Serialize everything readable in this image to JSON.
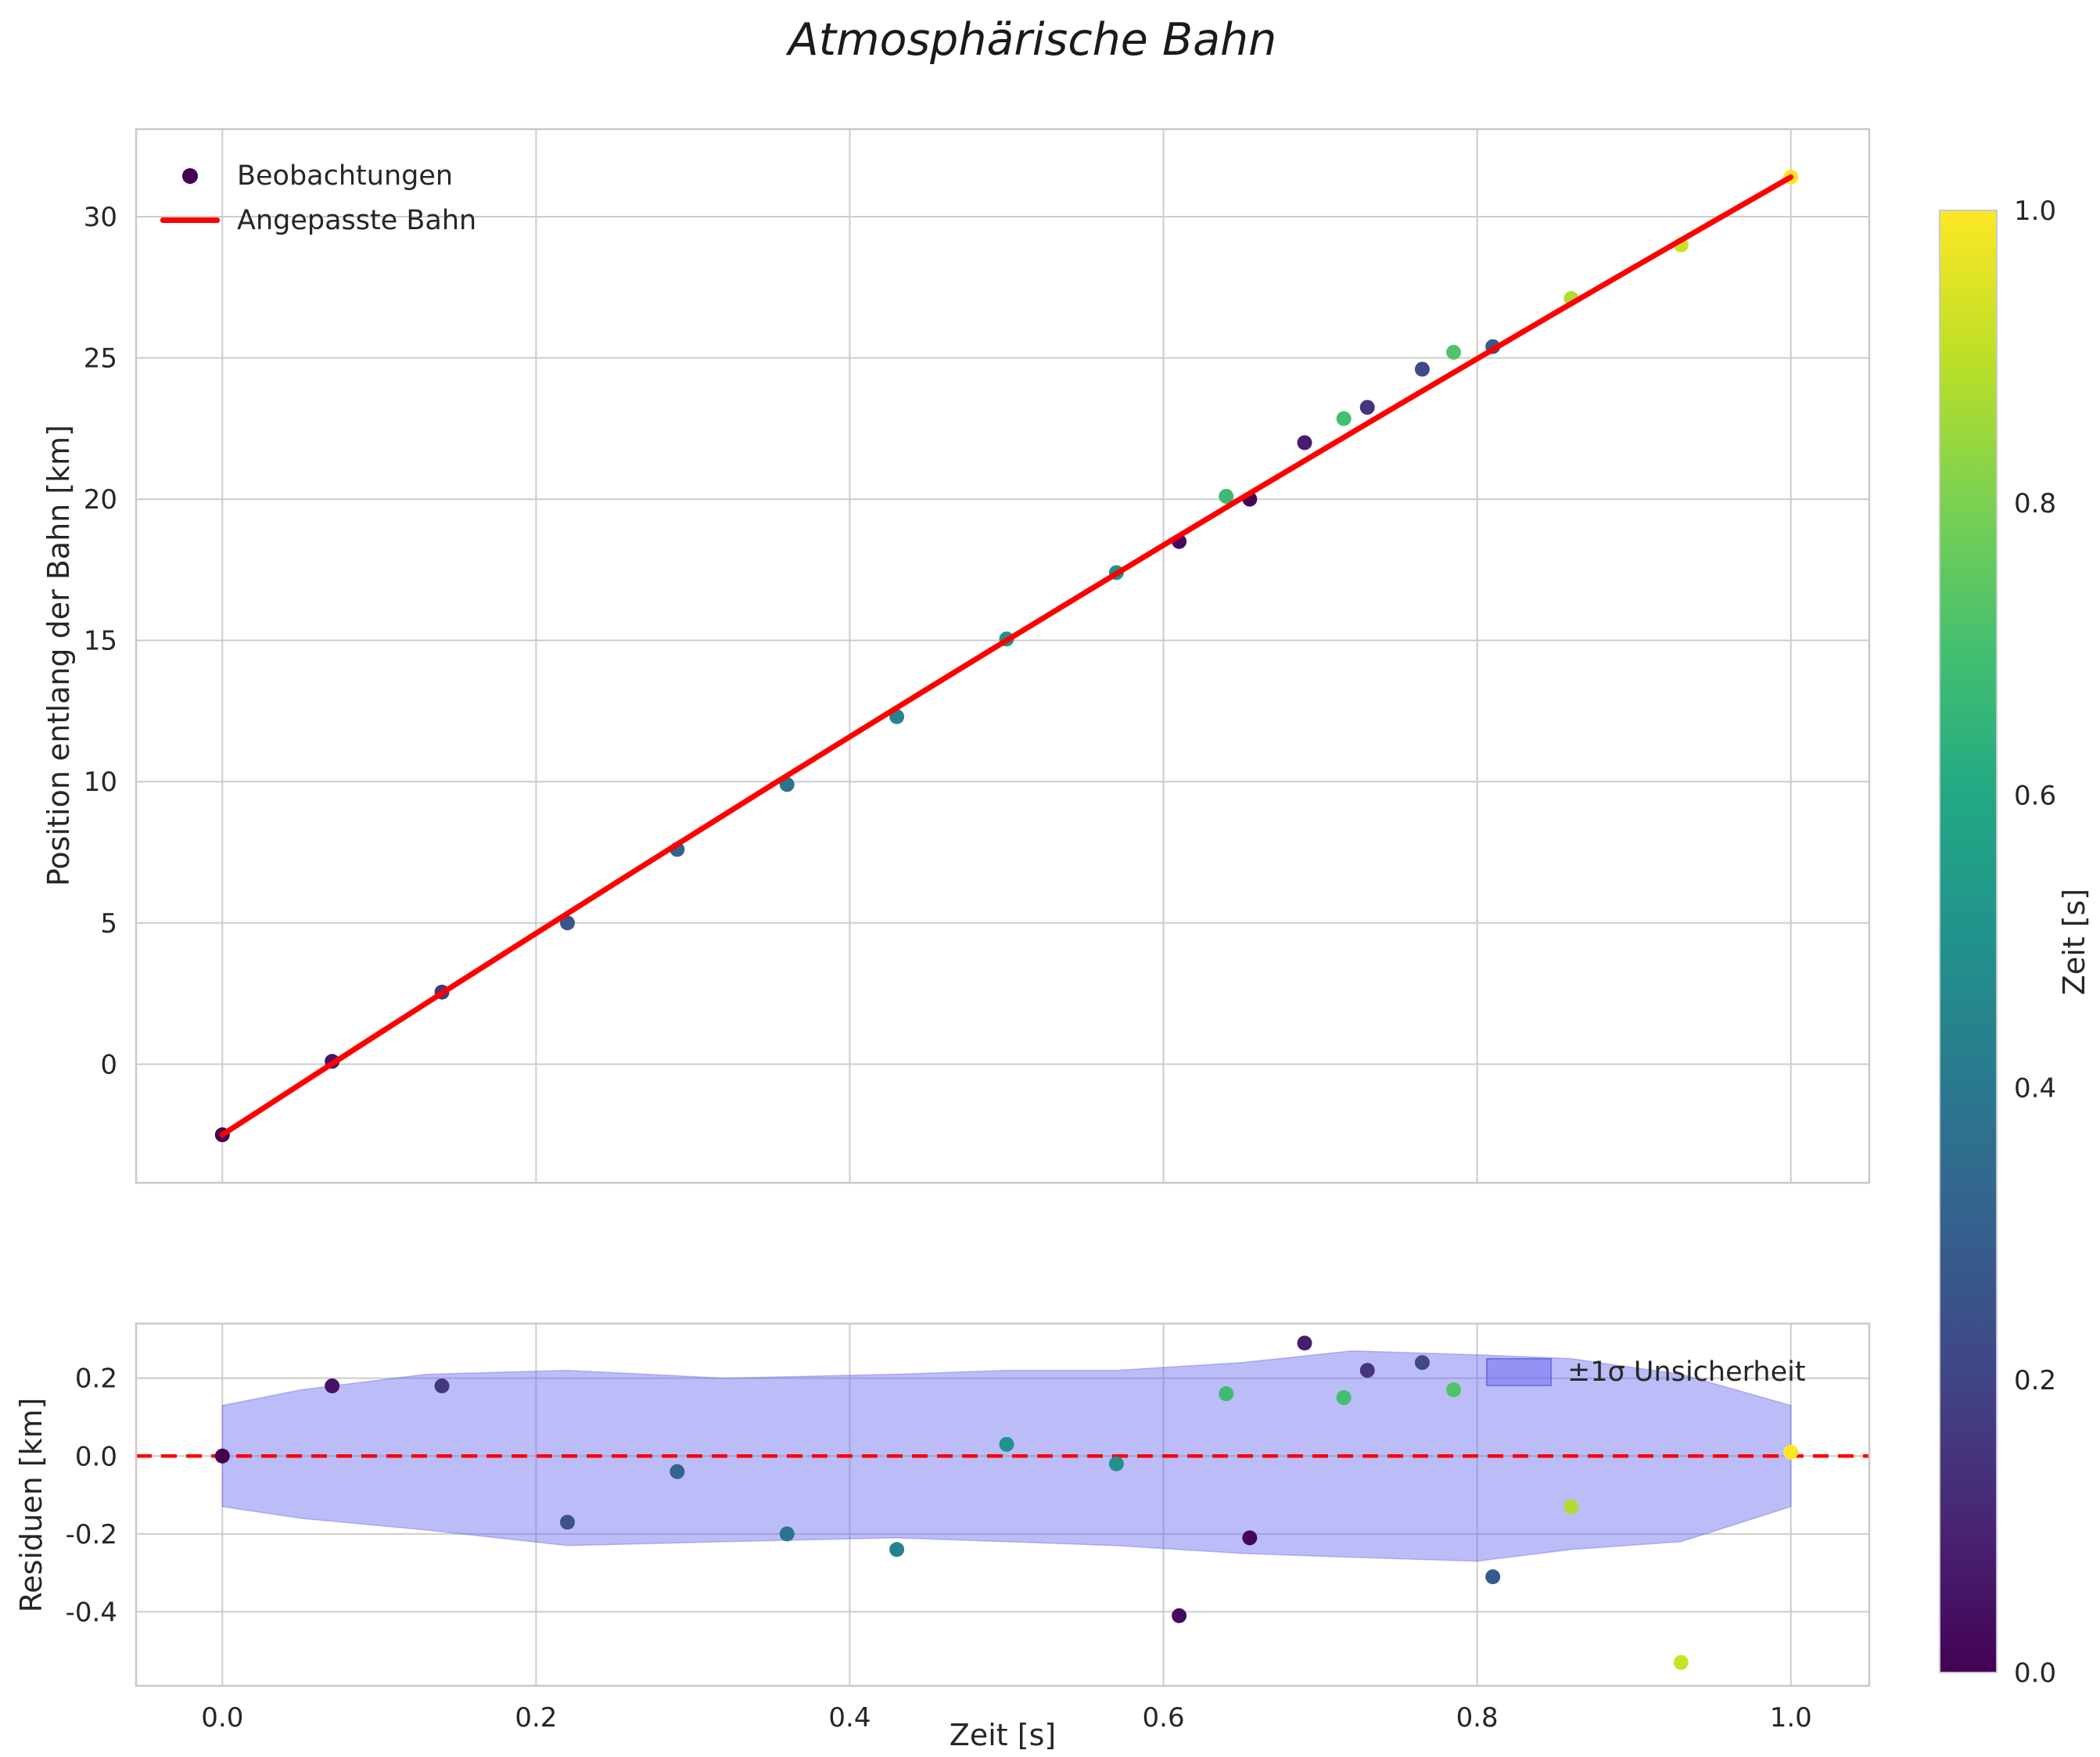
{
  "title": "Atmosphärische Bahn",
  "colors": {
    "fit_line": "#ff0000",
    "zero_line": "#ff0000",
    "band_fill": "#6a6af0",
    "band_edge": "#5858e0",
    "grid": "#cccccc",
    "spine": "#c9c9c9",
    "text": "#262626",
    "legend_marker": "#440154"
  },
  "legend_top": {
    "observations": "Beobachtungen",
    "fit": "Angepasste Bahn"
  },
  "legend_residual": {
    "band": "±1σ Unsicherheit"
  },
  "colorbar": {
    "label": "Zeit [s]",
    "ticks": [
      "1.0",
      "0.8",
      "0.6",
      "0.4",
      "0.2",
      "0.0"
    ],
    "vmin": 0.0,
    "vmax": 1.0,
    "colormap": "viridis"
  },
  "chart_data": [
    {
      "type": "scatter",
      "title": "Atmosphärische Bahn",
      "xlabel": "Zeit [s]",
      "ylabel": "Position entlang der Bahn [km]",
      "xlim": [
        -0.055,
        1.05
      ],
      "ylim": [
        -4.2,
        33.1
      ],
      "xticks": [
        "0.0",
        "0.2",
        "0.4",
        "0.6",
        "0.8",
        "1.0"
      ],
      "yticks": [
        "0",
        "5",
        "10",
        "15",
        "20",
        "25",
        "30"
      ],
      "grid": true,
      "legend_position": "upper left",
      "series": [
        {
          "name": "Beobachtungen",
          "type": "scatter",
          "colormap": "viridis",
          "x": [
            0.0,
            0.07,
            0.14,
            0.22,
            0.29,
            0.36,
            0.43,
            0.5,
            0.57,
            0.61,
            0.64,
            0.655,
            0.69,
            0.715,
            0.73,
            0.765,
            0.785,
            0.81,
            0.86,
            0.93,
            1.0
          ],
          "y": [
            -2.5,
            0.1,
            2.55,
            5.0,
            7.6,
            9.9,
            12.3,
            15.05,
            17.4,
            18.5,
            20.1,
            20.0,
            22.0,
            22.85,
            23.25,
            24.6,
            25.2,
            25.4,
            27.1,
            29.0,
            31.4
          ],
          "c": [
            0.0,
            0.05,
            0.16,
            0.26,
            0.32,
            0.38,
            0.44,
            0.5,
            0.5,
            0.03,
            0.68,
            0.01,
            0.08,
            0.7,
            0.15,
            0.22,
            0.72,
            0.28,
            0.88,
            0.92,
            1.0
          ]
        },
        {
          "name": "Angepasste Bahn",
          "type": "line",
          "color": "#ff0000",
          "x": [
            0.0,
            0.05,
            0.1,
            0.15,
            0.2,
            0.25,
            0.3,
            0.35,
            0.4,
            0.45,
            0.5,
            0.55,
            0.6,
            0.65,
            0.7,
            0.75,
            0.8,
            0.85,
            0.9,
            0.95,
            1.0
          ],
          "y": [
            -2.5,
            -0.7,
            1.09,
            2.87,
            4.63,
            6.39,
            8.13,
            9.87,
            11.59,
            13.3,
            15.0,
            16.69,
            18.37,
            20.04,
            21.69,
            23.34,
            24.97,
            26.6,
            28.21,
            29.81,
            31.4
          ]
        }
      ]
    },
    {
      "type": "residuals",
      "xlabel": "Zeit [s]",
      "ylabel": "Residuen [km]",
      "xlim": [
        -0.055,
        1.05
      ],
      "ylim": [
        -0.59,
        0.34
      ],
      "xticks": [
        "0.0",
        "0.2",
        "0.4",
        "0.6",
        "0.8",
        "1.0"
      ],
      "yticks": [
        "-0.4",
        "-0.2",
        "0.0",
        "0.2"
      ],
      "grid": true,
      "series": [
        {
          "name": "±1σ Unsicherheit",
          "type": "band",
          "color": "#6a6af0",
          "x": [
            0.0,
            0.05,
            0.13,
            0.22,
            0.32,
            0.43,
            0.5,
            0.57,
            0.65,
            0.72,
            0.8,
            0.86,
            0.93,
            1.0
          ],
          "upper": [
            0.13,
            0.17,
            0.21,
            0.22,
            0.2,
            0.21,
            0.22,
            0.22,
            0.24,
            0.27,
            0.26,
            0.25,
            0.21,
            0.13
          ],
          "lower": [
            -0.13,
            -0.16,
            -0.19,
            -0.23,
            -0.22,
            -0.21,
            -0.22,
            -0.23,
            -0.25,
            -0.26,
            -0.27,
            -0.24,
            -0.22,
            -0.13
          ]
        },
        {
          "name": "Null-Linie",
          "type": "hline",
          "y": 0.0,
          "style": "dashed",
          "color": "#ff0000"
        },
        {
          "name": "Residuen",
          "type": "scatter",
          "colormap": "viridis",
          "x": [
            0.0,
            0.07,
            0.14,
            0.22,
            0.29,
            0.36,
            0.43,
            0.5,
            0.57,
            0.61,
            0.64,
            0.655,
            0.69,
            0.715,
            0.73,
            0.765,
            0.785,
            0.81,
            0.86,
            0.93,
            1.0
          ],
          "y": [
            0.0,
            0.18,
            0.18,
            -0.17,
            -0.04,
            -0.2,
            -0.24,
            0.03,
            -0.02,
            -0.41,
            0.16,
            -0.21,
            0.29,
            0.15,
            0.22,
            0.24,
            0.17,
            -0.31,
            -0.13,
            -0.53,
            0.01
          ],
          "c": [
            0.0,
            0.05,
            0.16,
            0.26,
            0.32,
            0.38,
            0.44,
            0.5,
            0.5,
            0.03,
            0.68,
            0.01,
            0.08,
            0.7,
            0.15,
            0.22,
            0.72,
            0.28,
            0.88,
            0.92,
            1.0
          ]
        }
      ]
    }
  ]
}
